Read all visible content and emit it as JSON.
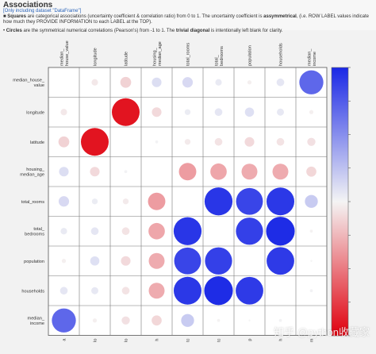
{
  "header": {
    "title": "Associations",
    "subtitle": "[Only including dataset \"DataFrame\"]",
    "line1_bullet": "■",
    "line1_pre": "Squares",
    "line1_mid": " are categorical associations (uncertainty coefficient & correlation ratio) from 0 to 1. The uncertainty coefficient is ",
    "line1_bold": "assymmetrical",
    "line1_post": ", (i.e. ROW LABEL values indicate how much they PROVIDE INFORMATION to each LABEL at the TOP).",
    "line2_bullet": "•",
    "line2_pre": "Circles",
    "line2_mid": " are the symmetrical numerical correlations (Pearson's) from -1 to 1. The ",
    "line2_bold": "trivial diagonal",
    "line2_post": " is intentionally left blank for clarity."
  },
  "watermark": "知乎 @python收藏家",
  "chart_data": {
    "type": "heatmap",
    "variables": [
      "median_house_value",
      "longitude",
      "latitude",
      "housing_median_age",
      "total_rooms",
      "total_bedrooms",
      "population",
      "households",
      "median_income"
    ],
    "column_labels": [
      "median_\nhouse_value",
      "longitude",
      "latitude",
      "housing_\nmedian_age",
      "total_rooms",
      "total_\nbedrooms",
      "population",
      "households",
      "median_\nincome"
    ],
    "row_labels": [
      "median_house_\nvalue",
      "longitude",
      "latitude",
      "housing_\nmedian_age",
      "total_rooms",
      "total_\nbedrooms",
      "population",
      "households",
      "median_\nincome"
    ],
    "bottom_tick_labels": [
      "a",
      "lo",
      "lo",
      "h",
      "tc",
      "tc",
      "p",
      "h",
      "m"
    ],
    "values": [
      [
        null,
        -0.05,
        -0.14,
        0.11,
        0.13,
        0.05,
        -0.02,
        0.07,
        0.69
      ],
      [
        -0.05,
        null,
        -0.92,
        -0.11,
        0.04,
        0.07,
        0.1,
        0.06,
        -0.02
      ],
      [
        -0.14,
        -0.92,
        null,
        0.01,
        -0.04,
        -0.07,
        -0.11,
        -0.07,
        -0.08
      ],
      [
        0.11,
        -0.11,
        0.01,
        null,
        -0.36,
        -0.32,
        -0.3,
        -0.3,
        -0.12
      ],
      [
        0.13,
        0.04,
        -0.04,
        -0.36,
        null,
        0.93,
        0.86,
        0.92,
        0.2
      ],
      [
        0.05,
        0.07,
        -0.07,
        -0.32,
        0.93,
        null,
        0.88,
        0.98,
        -0.01
      ],
      [
        -0.02,
        0.1,
        -0.11,
        -0.3,
        0.86,
        0.88,
        null,
        0.91,
        0.0
      ],
      [
        0.07,
        0.06,
        -0.07,
        -0.3,
        0.92,
        0.98,
        0.91,
        null,
        0.01
      ],
      [
        0.69,
        -0.02,
        -0.08,
        -0.12,
        0.2,
        -0.01,
        0.0,
        0.01,
        null
      ]
    ],
    "color_scale": {
      "min": -1,
      "max": 1,
      "low_color": "#e0000e",
      "mid_color": "#f4f4f4",
      "high_color": "#1a28e6"
    },
    "colorbar_ticks": [
      "",
      "",
      "",
      "",
      "",
      "",
      "",
      "",
      ""
    ],
    "grid": true
  }
}
